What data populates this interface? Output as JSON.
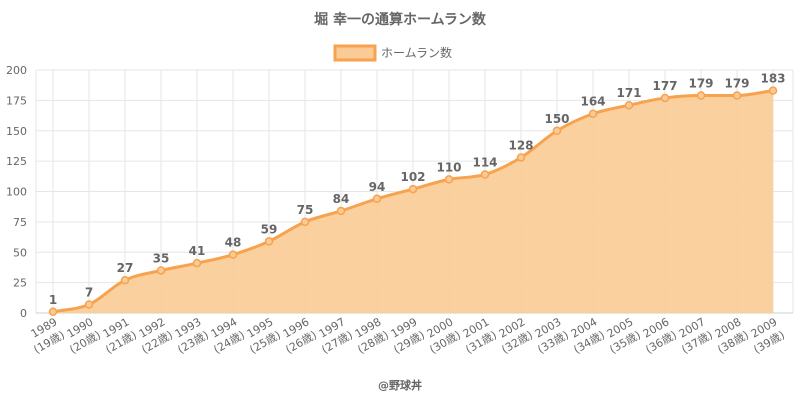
{
  "chart_data": {
    "type": "area",
    "title": "堀 幸一の通算ホームラン数",
    "legend": {
      "label": "ホームラン数",
      "position": "top"
    },
    "categories": [
      [
        "1989",
        "(19歳)"
      ],
      [
        "1990",
        "(20歳)"
      ],
      [
        "1991",
        "(21歳)"
      ],
      [
        "1992",
        "(22歳)"
      ],
      [
        "1993",
        "(23歳)"
      ],
      [
        "1994",
        "(24歳)"
      ],
      [
        "1995",
        "(25歳)"
      ],
      [
        "1996",
        "(26歳)"
      ],
      [
        "1997",
        "(27歳)"
      ],
      [
        "1998",
        "(28歳)"
      ],
      [
        "1999",
        "(29歳)"
      ],
      [
        "2000",
        "(30歳)"
      ],
      [
        "2001",
        "(31歳)"
      ],
      [
        "2002",
        "(32歳)"
      ],
      [
        "2003",
        "(33歳)"
      ],
      [
        "2004",
        "(34歳)"
      ],
      [
        "2005",
        "(35歳)"
      ],
      [
        "2006",
        "(36歳)"
      ],
      [
        "2007",
        "(37歳)"
      ],
      [
        "2008",
        "(38歳)"
      ],
      [
        "2009",
        "(39歳)"
      ]
    ],
    "series": [
      {
        "name": "ホームラン数",
        "values": [
          1,
          7,
          27,
          35,
          41,
          48,
          59,
          75,
          84,
          94,
          102,
          110,
          114,
          128,
          150,
          164,
          171,
          177,
          179,
          179,
          183
        ]
      }
    ],
    "ylim": [
      0,
      200
    ],
    "yticks": [
      0,
      25,
      50,
      75,
      100,
      125,
      150,
      175,
      200
    ],
    "grid": true,
    "colors": {
      "line": "#F7A24F",
      "fill": "#FBCB95",
      "text": "#666666",
      "grid": "#E6E6E6"
    }
  },
  "footer": {
    "credit": "@野球丼"
  }
}
